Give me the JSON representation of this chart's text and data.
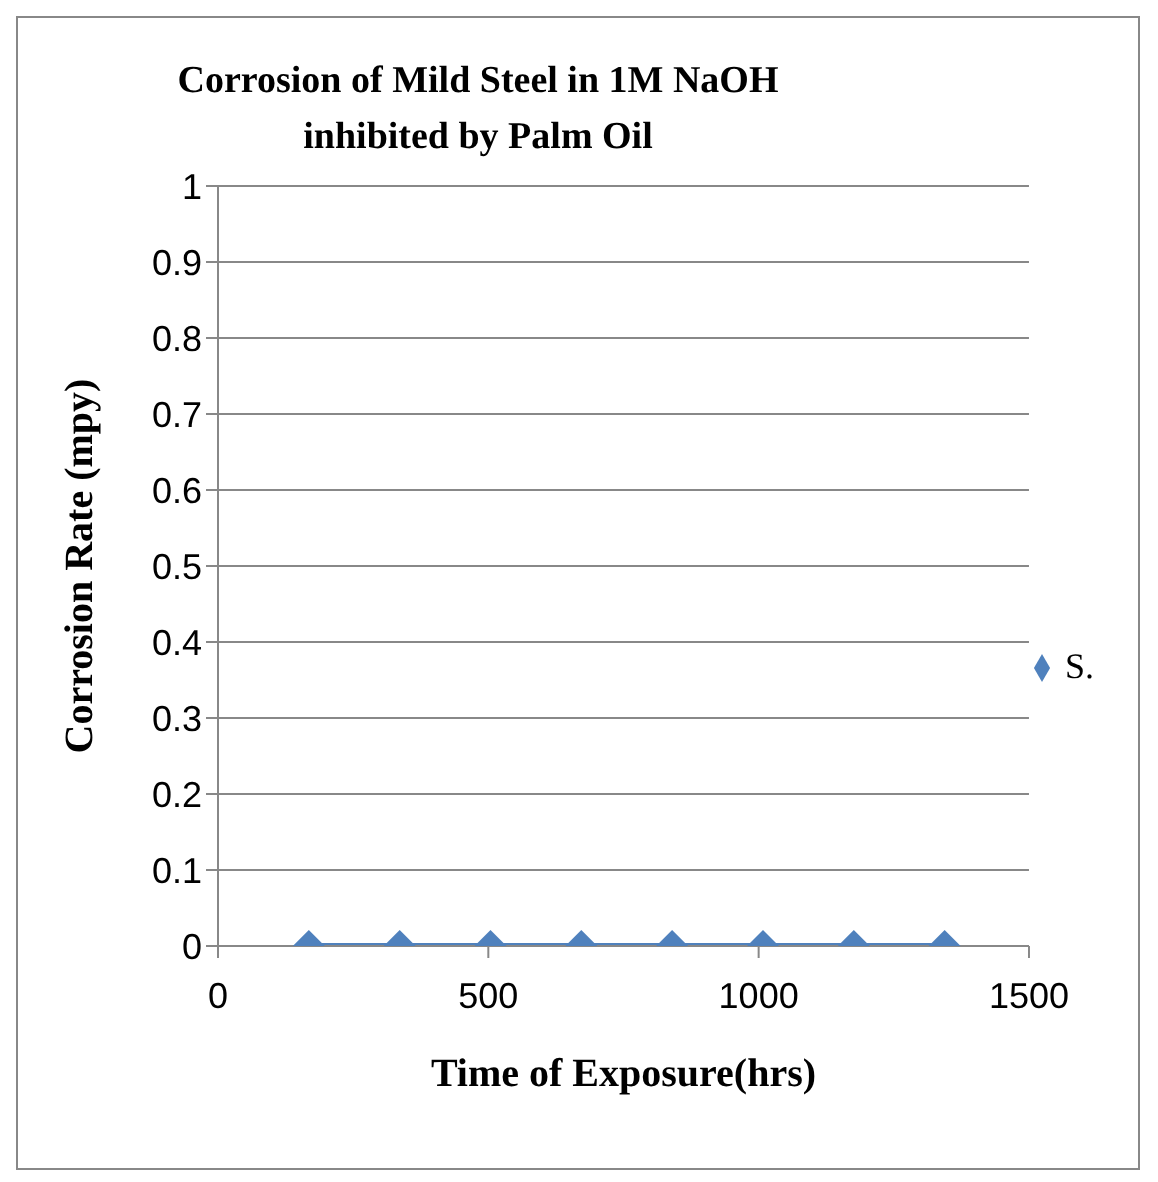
{
  "chart_data": {
    "type": "line",
    "title": "Corrosion of Mild Steel  in 1M NaOH\ninhibited by Palm Oil",
    "xlabel": "Time of Exposure(hrs)",
    "ylabel": "Corrosion Rate (mpy)",
    "x": [
      168,
      336,
      504,
      672,
      840,
      1008,
      1176,
      1344
    ],
    "series": [
      {
        "name": "S.",
        "color": "#4f81bd",
        "values": [
          0,
          0,
          0,
          0,
          0,
          0,
          0,
          0
        ]
      }
    ],
    "xlim": [
      0,
      1500
    ],
    "xticks": [
      0,
      500,
      1000,
      1500
    ],
    "ylim": [
      0,
      1
    ],
    "yticks": [
      0,
      0.1,
      0.2,
      0.3,
      0.4,
      0.5,
      0.6,
      0.7,
      0.8,
      0.9,
      1
    ],
    "grid": "y",
    "legend": "right",
    "marker": "diamond",
    "line_style": "solid"
  }
}
